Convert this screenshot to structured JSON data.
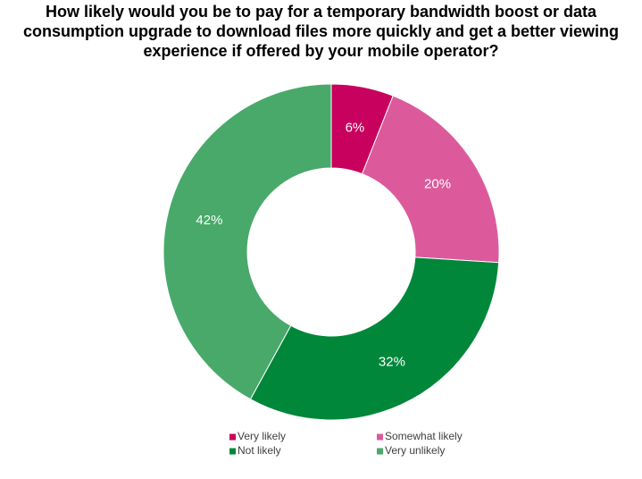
{
  "chart_data": {
    "type": "donut",
    "title": "How likely would you be to pay for a temporary bandwidth boost or data consumption upgrade to download files more quickly and get a better viewing experience if offered by your mobile operator?",
    "categories": [
      "Very likely",
      "Somewhat likely",
      "Not likely",
      "Very unlikely"
    ],
    "values": [
      6,
      20,
      32,
      42
    ],
    "value_labels": [
      "6%",
      "20%",
      "32%",
      "42%"
    ],
    "colors": [
      "#c8005e",
      "#dc5a9c",
      "#00873a",
      "#48a96a"
    ],
    "legend": "bottom"
  }
}
